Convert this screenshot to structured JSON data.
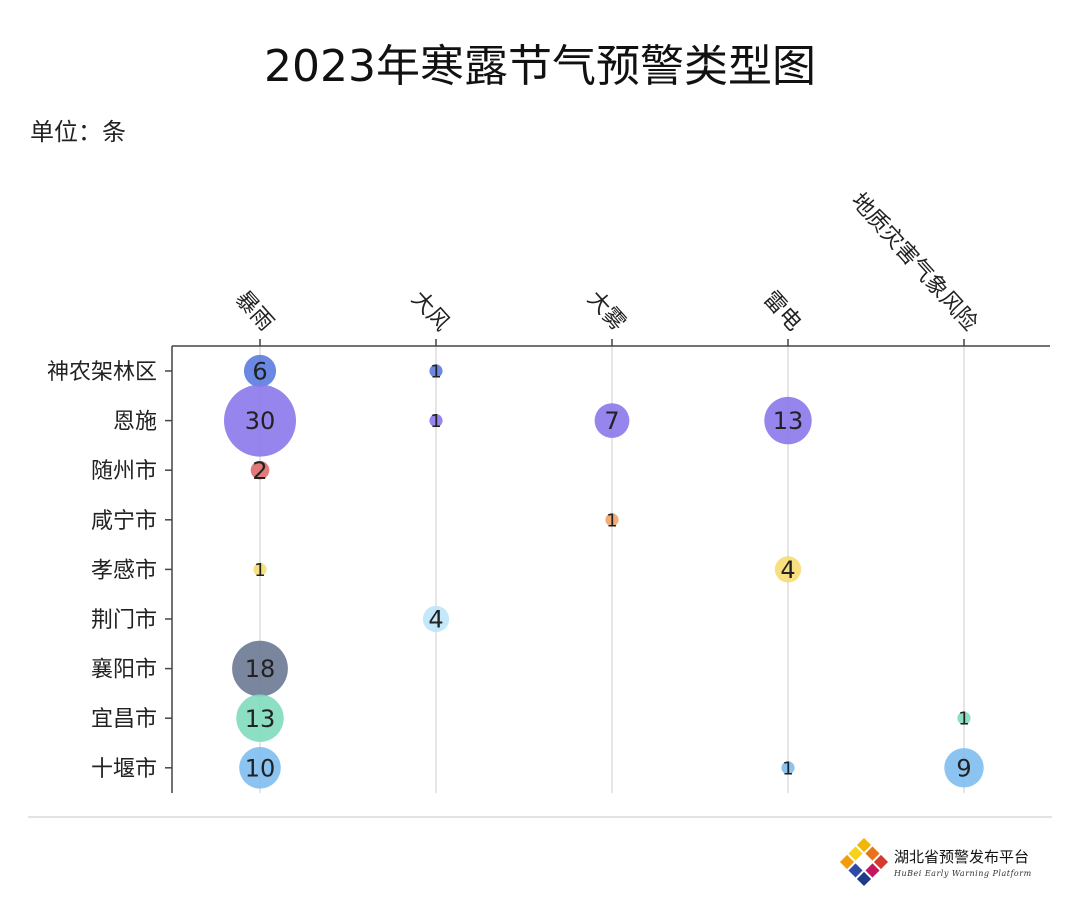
{
  "title": "2023年寒露节气预警类型图",
  "unit_label": "单位：条",
  "logo": {
    "name_cn": "湖北省预警发布平台",
    "name_en": "HuBei Early Warning Platform"
  },
  "chart_data": {
    "type": "scatter",
    "title": "2023年寒露节气预警类型图",
    "categories_x": [
      "暴雨",
      "大风",
      "大雾",
      "雷电",
      "地质灾害气象风险"
    ],
    "categories_y": [
      "神农架林区",
      "恩施",
      "随州市",
      "咸宁市",
      "孝感市",
      "荆门市",
      "襄阳市",
      "宜昌市",
      "十堰市"
    ],
    "grid": true,
    "row_colors": {
      "神农架林区": "#5b7be0",
      "恩施": "#8a78ea",
      "随州市": "#e06a6a",
      "咸宁市": "#f0a36a",
      "孝感市": "#f7dc72",
      "荆门市": "#bde6f8",
      "襄阳市": "#6b7893",
      "宜昌市": "#7fdcbc",
      "十堰市": "#7ebdf0"
    },
    "points": [
      {
        "x": "暴雨",
        "y": "神农架林区",
        "value": 6
      },
      {
        "x": "大风",
        "y": "神农架林区",
        "value": 1
      },
      {
        "x": "暴雨",
        "y": "恩施",
        "value": 30
      },
      {
        "x": "大风",
        "y": "恩施",
        "value": 1
      },
      {
        "x": "大雾",
        "y": "恩施",
        "value": 7
      },
      {
        "x": "雷电",
        "y": "恩施",
        "value": 13
      },
      {
        "x": "暴雨",
        "y": "随州市",
        "value": 2
      },
      {
        "x": "大雾",
        "y": "咸宁市",
        "value": 1
      },
      {
        "x": "暴雨",
        "y": "孝感市",
        "value": 1
      },
      {
        "x": "雷电",
        "y": "孝感市",
        "value": 4
      },
      {
        "x": "大风",
        "y": "荆门市",
        "value": 4
      },
      {
        "x": "暴雨",
        "y": "襄阳市",
        "value": 18
      },
      {
        "x": "暴雨",
        "y": "宜昌市",
        "value": 13
      },
      {
        "x": "地质灾害气象风险",
        "y": "宜昌市",
        "value": 1
      },
      {
        "x": "暴雨",
        "y": "十堰市",
        "value": 10
      },
      {
        "x": "雷电",
        "y": "十堰市",
        "value": 1
      },
      {
        "x": "地质灾害气象风险",
        "y": "十堰市",
        "value": 9
      }
    ]
  }
}
